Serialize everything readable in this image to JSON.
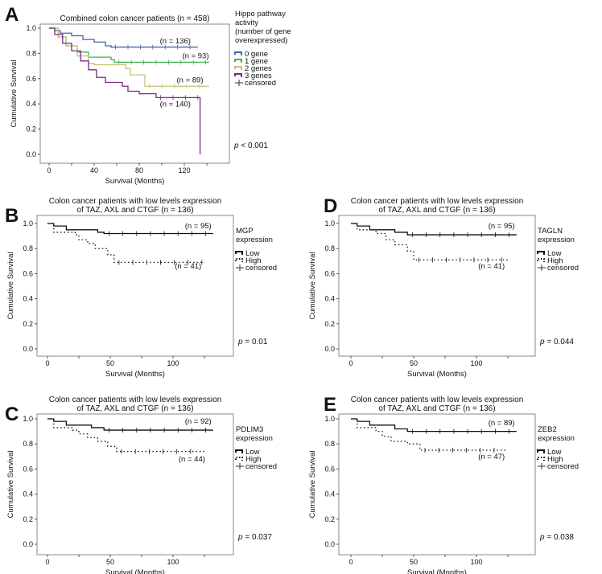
{
  "chart_data": [
    {
      "type": "line",
      "panel_label": "A",
      "title": [
        "Combined colon cancer patients (n = 458)"
      ],
      "xlabel": "Survival (Months)",
      "ylabel": "Cumulative Survival",
      "xlim": [
        0,
        150
      ],
      "ylim": [
        0,
        1
      ],
      "xticks": [
        0,
        40,
        80,
        120
      ],
      "yticks": [
        0.0,
        0.2,
        0.4,
        0.6,
        0.8,
        1.0
      ],
      "legend_title": [
        "Hippo pathway",
        "activity",
        "(number of gene",
        "overexpressed)"
      ],
      "legend_censored": "censored",
      "p_value": "< 0.001",
      "series": [
        {
          "name": "0 gene",
          "color": "#4a63b0",
          "dash": false,
          "n_label": "(n = 136)",
          "label_at": [
            112,
            0.88
          ],
          "steps": [
            [
              0,
              1
            ],
            [
              5,
              0.98
            ],
            [
              10,
              0.96
            ],
            [
              20,
              0.94
            ],
            [
              30,
              0.91
            ],
            [
              40,
              0.89
            ],
            [
              50,
              0.86
            ],
            [
              55,
              0.85
            ],
            [
              132,
              0.85
            ]
          ]
        },
        {
          "name": "1 gene",
          "color": "#3cb34a",
          "dash": false,
          "n_label": "(n = 93)",
          "label_at": [
            130,
            0.76
          ],
          "steps": [
            [
              0,
              1
            ],
            [
              8,
              0.93
            ],
            [
              15,
              0.86
            ],
            [
              25,
              0.81
            ],
            [
              35,
              0.77
            ],
            [
              55,
              0.75
            ],
            [
              58,
              0.73
            ],
            [
              142,
              0.73
            ]
          ]
        },
        {
          "name": "2 genes",
          "color": "#c8c07a",
          "dash": false,
          "n_label": "(n = 89)",
          "label_at": [
            125,
            0.57
          ],
          "steps": [
            [
              0,
              1
            ],
            [
              8,
              0.93
            ],
            [
              15,
              0.86
            ],
            [
              25,
              0.78
            ],
            [
              35,
              0.72
            ],
            [
              40,
              0.71
            ],
            [
              68,
              0.68
            ],
            [
              72,
              0.63
            ],
            [
              85,
              0.54
            ],
            [
              142,
              0.54
            ]
          ]
        },
        {
          "name": "3 genes",
          "color": "#7b2a83",
          "dash": false,
          "n_label": "(n = 140)",
          "label_at": [
            112,
            0.38
          ],
          "steps": [
            [
              0,
              1
            ],
            [
              5,
              0.95
            ],
            [
              12,
              0.88
            ],
            [
              20,
              0.82
            ],
            [
              28,
              0.74
            ],
            [
              35,
              0.67
            ],
            [
              42,
              0.61
            ],
            [
              50,
              0.57
            ],
            [
              65,
              0.54
            ],
            [
              70,
              0.5
            ],
            [
              80,
              0.48
            ],
            [
              95,
              0.45
            ],
            [
              134,
              0.45
            ],
            [
              134,
              0
            ]
          ]
        }
      ]
    },
    {
      "type": "line",
      "panel_label": "B",
      "title": [
        "Colon cancer patients with low levels expression",
        "of TAZ, AXL and CTGF (n = 136)"
      ],
      "xlabel": "Survival (Months)",
      "ylabel": "Cumulative Survival",
      "xlim": [
        0,
        150
      ],
      "ylim": [
        0,
        1
      ],
      "xticks": [
        0,
        50,
        100
      ],
      "yticks": [
        0.0,
        0.2,
        0.4,
        0.6,
        0.8,
        1.0
      ],
      "legend_title": [
        "MGP",
        "expression"
      ],
      "legend_censored": "censored",
      "p_value": "= 0.01",
      "series": [
        {
          "name": "Low",
          "color": "#111111",
          "dash": false,
          "n_label": "(n = 95)",
          "label_at": [
            120,
            0.96
          ],
          "steps": [
            [
              0,
              1
            ],
            [
              5,
              0.98
            ],
            [
              15,
              0.95
            ],
            [
              40,
              0.93
            ],
            [
              45,
              0.92
            ],
            [
              132,
              0.92
            ]
          ]
        },
        {
          "name": "High",
          "color": "#111111",
          "dash": true,
          "n_label": "(n = 41)",
          "label_at": [
            112,
            0.64
          ],
          "steps": [
            [
              0,
              1
            ],
            [
              5,
              0.93
            ],
            [
              22,
              0.91
            ],
            [
              25,
              0.87
            ],
            [
              32,
              0.84
            ],
            [
              38,
              0.8
            ],
            [
              48,
              0.75
            ],
            [
              53,
              0.69
            ],
            [
              125,
              0.69
            ]
          ]
        }
      ]
    },
    {
      "type": "line",
      "panel_label": "C",
      "title": [
        "Colon cancer patients with low levels expression",
        "of TAZ, AXL and CTGF (n = 136)"
      ],
      "xlabel": "Survival (Months)",
      "ylabel": "Cumulative Survival",
      "xlim": [
        0,
        150
      ],
      "ylim": [
        0,
        1
      ],
      "xticks": [
        0,
        50,
        100
      ],
      "yticks": [
        0.0,
        0.2,
        0.4,
        0.6,
        0.8,
        1.0
      ],
      "legend_title": [
        "PDLIM3",
        "expression"
      ],
      "legend_censored": "censored",
      "p_value": "= 0.037",
      "series": [
        {
          "name": "Low",
          "color": "#111111",
          "dash": false,
          "n_label": "(n = 92)",
          "label_at": [
            120,
            0.96
          ],
          "steps": [
            [
              0,
              1
            ],
            [
              5,
              0.98
            ],
            [
              15,
              0.95
            ],
            [
              35,
              0.93
            ],
            [
              45,
              0.91
            ],
            [
              132,
              0.91
            ]
          ]
        },
        {
          "name": "High",
          "color": "#111111",
          "dash": true,
          "n_label": "(n = 44)",
          "label_at": [
            115,
            0.66
          ],
          "steps": [
            [
              0,
              1
            ],
            [
              5,
              0.93
            ],
            [
              20,
              0.91
            ],
            [
              25,
              0.88
            ],
            [
              32,
              0.85
            ],
            [
              40,
              0.82
            ],
            [
              48,
              0.78
            ],
            [
              55,
              0.74
            ],
            [
              125,
              0.74
            ]
          ]
        }
      ]
    },
    {
      "type": "line",
      "panel_label": "D",
      "title": [
        "Colon cancer patients with low levels expression",
        "of TAZ, AXL and CTGF (n = 136)"
      ],
      "xlabel": "Survival (Months)",
      "ylabel": "Cumulative Survival",
      "xlim": [
        0,
        150
      ],
      "ylim": [
        0,
        1
      ],
      "xticks": [
        0,
        50,
        100
      ],
      "yticks": [
        0.0,
        0.2,
        0.4,
        0.6,
        0.8,
        1.0
      ],
      "legend_title": [
        "TAGLN",
        "expression"
      ],
      "legend_censored": "censored",
      "p_value": "= 0.044",
      "series": [
        {
          "name": "Low",
          "color": "#111111",
          "dash": false,
          "n_label": "(n = 95)",
          "label_at": [
            120,
            0.96
          ],
          "steps": [
            [
              0,
              1
            ],
            [
              5,
              0.98
            ],
            [
              15,
              0.95
            ],
            [
              35,
              0.93
            ],
            [
              45,
              0.91
            ],
            [
              132,
              0.91
            ]
          ]
        },
        {
          "name": "High",
          "color": "#111111",
          "dash": true,
          "n_label": "(n = 41)",
          "label_at": [
            112,
            0.64
          ],
          "steps": [
            [
              0,
              1
            ],
            [
              5,
              0.95
            ],
            [
              20,
              0.92
            ],
            [
              28,
              0.87
            ],
            [
              35,
              0.83
            ],
            [
              45,
              0.78
            ],
            [
              50,
              0.71
            ],
            [
              125,
              0.71
            ]
          ]
        }
      ]
    },
    {
      "type": "line",
      "panel_label": "E",
      "title": [
        "Colon cancer patients with low levels expression",
        "of TAZ, AXL and CTGF (n = 136)"
      ],
      "xlabel": "Survival (Months)",
      "ylabel": "Cumulative Survival",
      "xlim": [
        0,
        150
      ],
      "ylim": [
        0,
        1
      ],
      "xticks": [
        0,
        50,
        100
      ],
      "yticks": [
        0.0,
        0.2,
        0.4,
        0.6,
        0.8,
        1.0
      ],
      "legend_title": [
        "ZEB2",
        "expression"
      ],
      "legend_censored": "censored",
      "p_value": "= 0.038",
      "series": [
        {
          "name": "Low",
          "color": "#111111",
          "dash": false,
          "n_label": "(n = 89)",
          "label_at": [
            120,
            0.95
          ],
          "steps": [
            [
              0,
              1
            ],
            [
              5,
              0.98
            ],
            [
              15,
              0.95
            ],
            [
              35,
              0.92
            ],
            [
              45,
              0.9
            ],
            [
              132,
              0.9
            ]
          ]
        },
        {
          "name": "High",
          "color": "#111111",
          "dash": true,
          "n_label": "(n = 47)",
          "label_at": [
            112,
            0.68
          ],
          "steps": [
            [
              0,
              1
            ],
            [
              5,
              0.93
            ],
            [
              20,
              0.9
            ],
            [
              25,
              0.86
            ],
            [
              32,
              0.82
            ],
            [
              45,
              0.8
            ],
            [
              55,
              0.75
            ],
            [
              125,
              0.75
            ]
          ]
        }
      ]
    }
  ]
}
